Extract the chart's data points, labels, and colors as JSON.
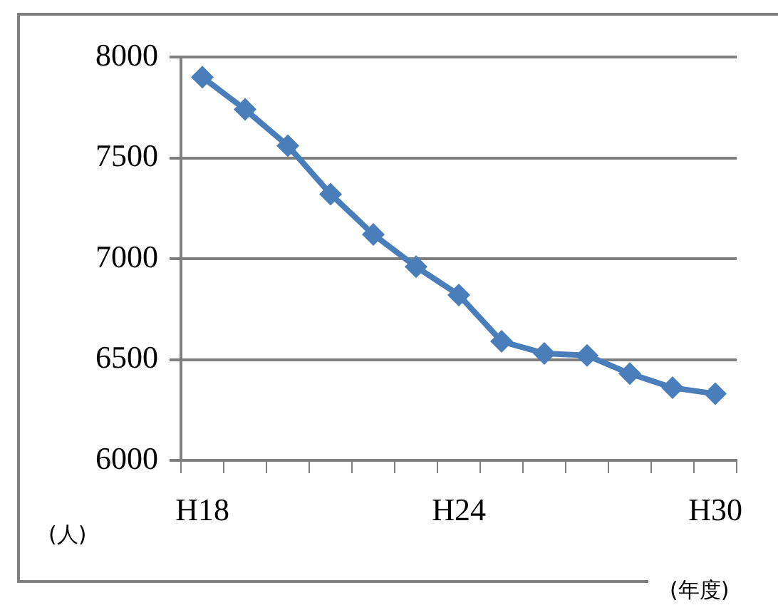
{
  "chart_data": {
    "type": "line",
    "ylabel": "(人)",
    "xlabel": "(年度)",
    "categories": [
      "H18",
      null,
      null,
      null,
      null,
      null,
      "H24",
      null,
      null,
      null,
      null,
      null,
      "H30"
    ],
    "series": [
      {
        "color": "#4a7ebb",
        "values": [
          7900,
          7740,
          7560,
          7320,
          7120,
          6960,
          6820,
          6590,
          6530,
          6520,
          6430,
          6360,
          6330
        ]
      }
    ],
    "ylim": [
      6000,
      8000
    ],
    "yticks": [
      6000,
      6500,
      7000,
      7500,
      8000
    ],
    "grid": "y",
    "legend": false,
    "marker": "diamond",
    "line_style": "solid"
  }
}
